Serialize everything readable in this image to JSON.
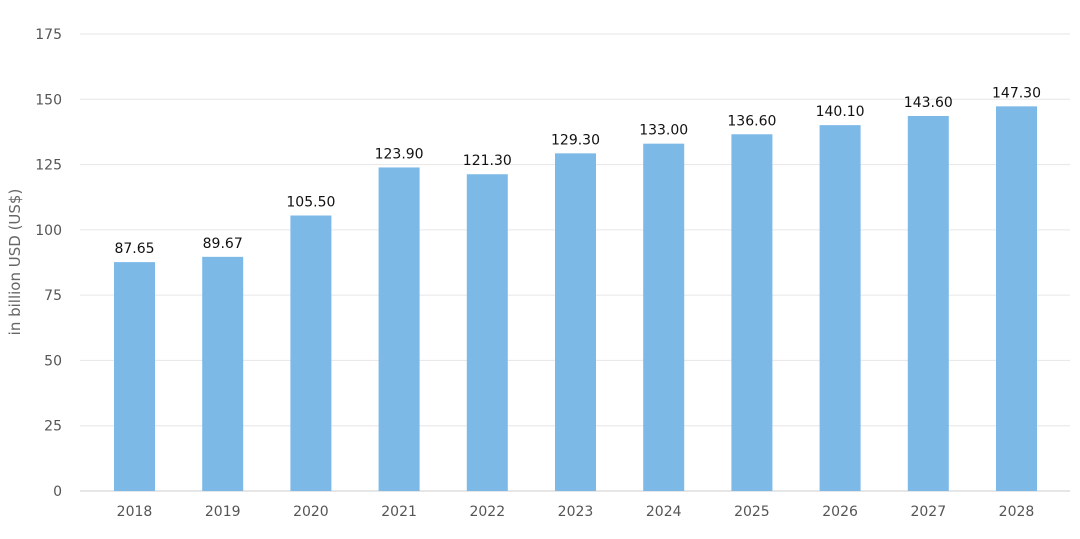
{
  "chart_data": {
    "type": "bar",
    "title": "",
    "xlabel": "",
    "ylabel": "in billion USD (US$)",
    "categories": [
      "2018",
      "2019",
      "2020",
      "2021",
      "2022",
      "2023",
      "2024",
      "2025",
      "2026",
      "2027",
      "2028"
    ],
    "values": [
      87.65,
      89.67,
      105.5,
      123.9,
      121.3,
      129.3,
      133.0,
      136.6,
      140.1,
      143.6,
      147.3
    ],
    "value_labels": [
      "87.65",
      "89.67",
      "105.50",
      "123.90",
      "121.30",
      "129.30",
      "133.00",
      "136.60",
      "140.10",
      "143.60",
      "147.30"
    ],
    "ylim": [
      0,
      175
    ],
    "yticks": [
      "0",
      "25",
      "50",
      "75",
      "100",
      "125",
      "150",
      "175"
    ],
    "grid": true,
    "legend": "none",
    "colors": {
      "bar": "#7db9e7",
      "grid": "#e6e6e6",
      "axis": "#cccccc"
    }
  }
}
